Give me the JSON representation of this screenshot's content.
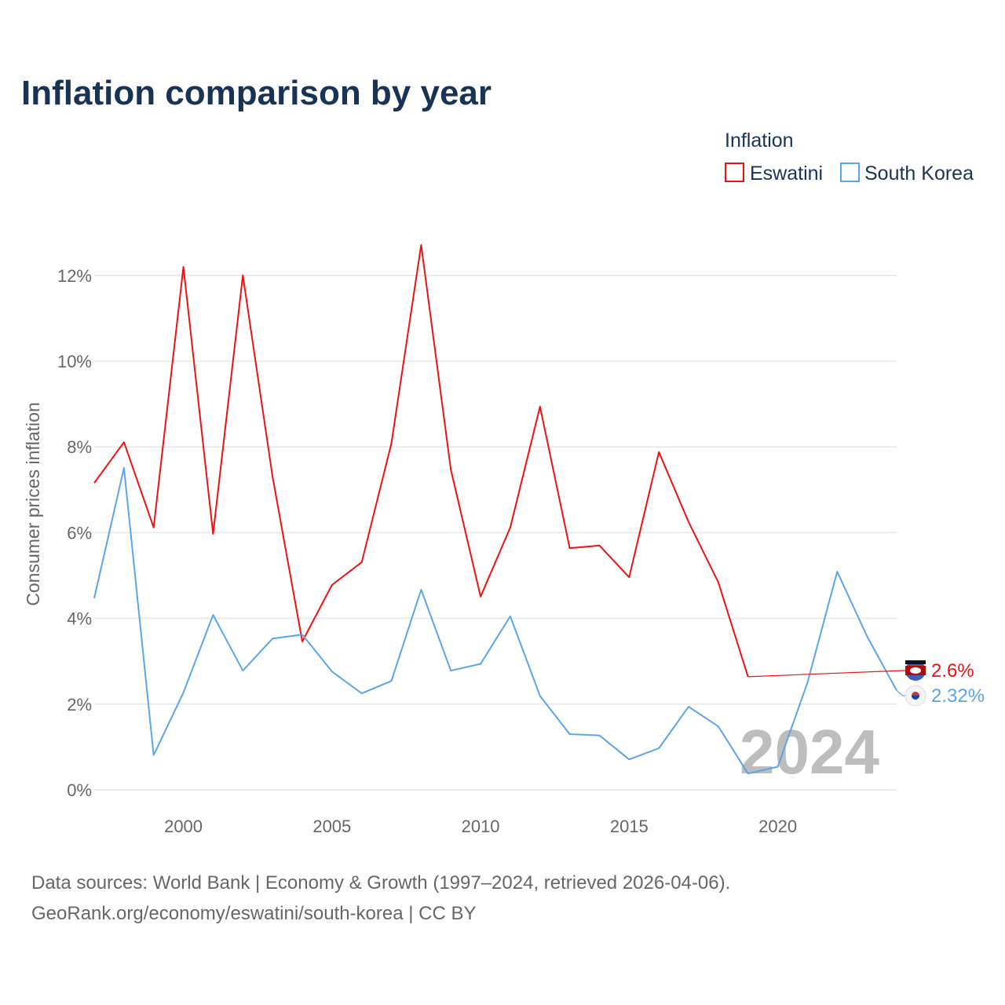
{
  "title": "Inflation comparison by year",
  "legend": {
    "title": "Inflation",
    "items": [
      "Eswatini",
      "South Korea"
    ]
  },
  "year_watermark": "2024",
  "source_lines": [
    "Data sources: World Bank | Economy & Growth (1997–2024, retrieved 2026-04-06).",
    "GeoRank.org/economy/eswatini/south-korea | CC BY"
  ],
  "chart_data": {
    "type": "line",
    "title": "Inflation comparison by year",
    "xlabel": "",
    "ylabel": "Consumer prices inflation",
    "xlim": [
      1997,
      2024
    ],
    "ylim": [
      0,
      12.9
    ],
    "grid": true,
    "legend_placement": "top-right",
    "x_ticks": [
      2000,
      2005,
      2010,
      2015,
      2020
    ],
    "y_ticks": [
      0,
      2,
      4,
      6,
      8,
      10,
      12
    ],
    "y_tick_labels": [
      "0%",
      "2%",
      "4%",
      "6%",
      "8%",
      "10%",
      "12%"
    ],
    "series": [
      {
        "name": "Eswatini",
        "color": "#ee1111",
        "end_label": "2.6%",
        "x": [
          1997,
          1998,
          1999,
          2000,
          2001,
          2002,
          2003,
          2004,
          2005,
          2006,
          2007,
          2008,
          2009,
          2010,
          2011,
          2012,
          2013,
          2014,
          2015,
          2016,
          2017,
          2018,
          2019
        ],
        "values": [
          7.16,
          8.11,
          6.12,
          12.2,
          5.97,
          12.0,
          7.31,
          3.46,
          4.78,
          5.31,
          8.08,
          12.71,
          7.47,
          4.51,
          6.12,
          8.94,
          5.64,
          5.7,
          4.96,
          7.88,
          6.25,
          4.84,
          2.64
        ]
      },
      {
        "name": "South Korea",
        "color": "#5aa5ea",
        "end_label": "2.32%",
        "x": [
          1997,
          1998,
          1999,
          2000,
          2001,
          2002,
          2003,
          2004,
          2005,
          2006,
          2007,
          2008,
          2009,
          2010,
          2011,
          2012,
          2013,
          2014,
          2015,
          2016,
          2017,
          2018,
          2019,
          2020,
          2021,
          2022,
          2023,
          2024
        ],
        "values": [
          4.47,
          7.51,
          0.81,
          2.27,
          4.08,
          2.78,
          3.53,
          3.62,
          2.76,
          2.25,
          2.54,
          4.67,
          2.78,
          2.94,
          4.05,
          2.19,
          1.3,
          1.27,
          0.71,
          0.97,
          1.94,
          1.48,
          0.38,
          0.54,
          2.5,
          5.09,
          3.59,
          2.32
        ]
      }
    ]
  }
}
